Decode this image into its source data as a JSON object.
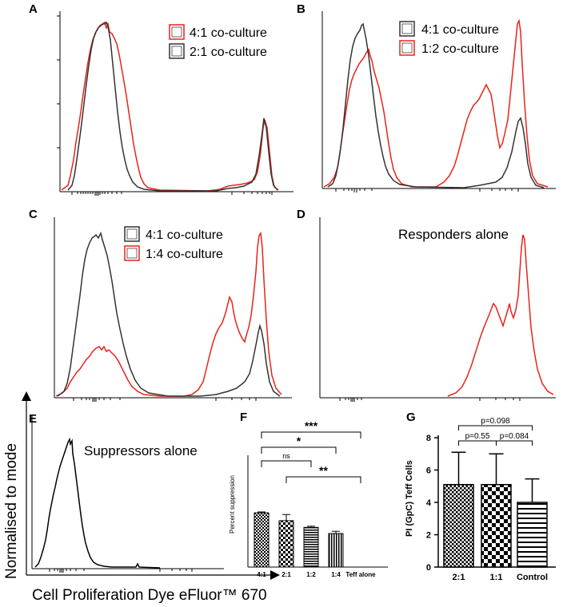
{
  "colors": {
    "red": "#e8231a",
    "dark": "#2a2a2a",
    "black": "#000000"
  },
  "histograms": {
    "A": {
      "letter": "A",
      "legend": [
        "4:1 co-culture",
        "2:1 co-culture"
      ]
    },
    "B": {
      "letter": "B",
      "legend": [
        "4:1 co-culture",
        "1:2 co-culture"
      ]
    },
    "C": {
      "letter": "C",
      "legend": [
        "4:1 co-culture",
        "1:4 co-culture"
      ]
    },
    "D": {
      "letter": "D",
      "label": "Responders alone"
    },
    "E": {
      "letter": "E",
      "label": "Suppressors alone"
    }
  },
  "axes": {
    "y_title": "Normalised to mode",
    "x_title": "Cell Proliferation Dye eFluor™ 670"
  },
  "chart_data": [
    {
      "panel": "F",
      "letter": "F",
      "type": "bar",
      "ylabel": "Percent suppression",
      "categories": [
        "4:1",
        "2:1",
        "1:2",
        "1:4",
        "Teff alone"
      ],
      "values": [
        48.5,
        41.5,
        35.5,
        30.0,
        0
      ],
      "errors": [
        0.8,
        5.5,
        1.0,
        2.0,
        0
      ],
      "ylim": [
        0,
        100
      ],
      "significance": [
        {
          "from": "4:1",
          "to": "Teff alone",
          "label": "***"
        },
        {
          "from": "4:1",
          "to": "1:4",
          "label": "*"
        },
        {
          "from": "4:1",
          "to": "1:2",
          "label": "ns"
        },
        {
          "from": "2:1",
          "to": "Teff alone",
          "label": "**"
        }
      ]
    },
    {
      "panel": "G",
      "letter": "G",
      "type": "bar",
      "ylabel": "PI (GpC) Teff Cells",
      "categories": [
        "2:1",
        "1:1",
        "Control"
      ],
      "values": [
        5.1,
        5.1,
        4.0
      ],
      "errors": [
        2.0,
        1.9,
        1.45
      ],
      "yticks": [
        "0",
        "2",
        "4",
        "6",
        "8"
      ],
      "ylim": [
        0,
        8
      ],
      "significance": [
        {
          "from": "2:1",
          "to": "Control",
          "label": "p=0.098"
        },
        {
          "from": "2:1",
          "to": "1:1",
          "label": "p=0.55"
        },
        {
          "from": "1:1",
          "to": "Control",
          "label": "p=0.084"
        }
      ]
    }
  ]
}
